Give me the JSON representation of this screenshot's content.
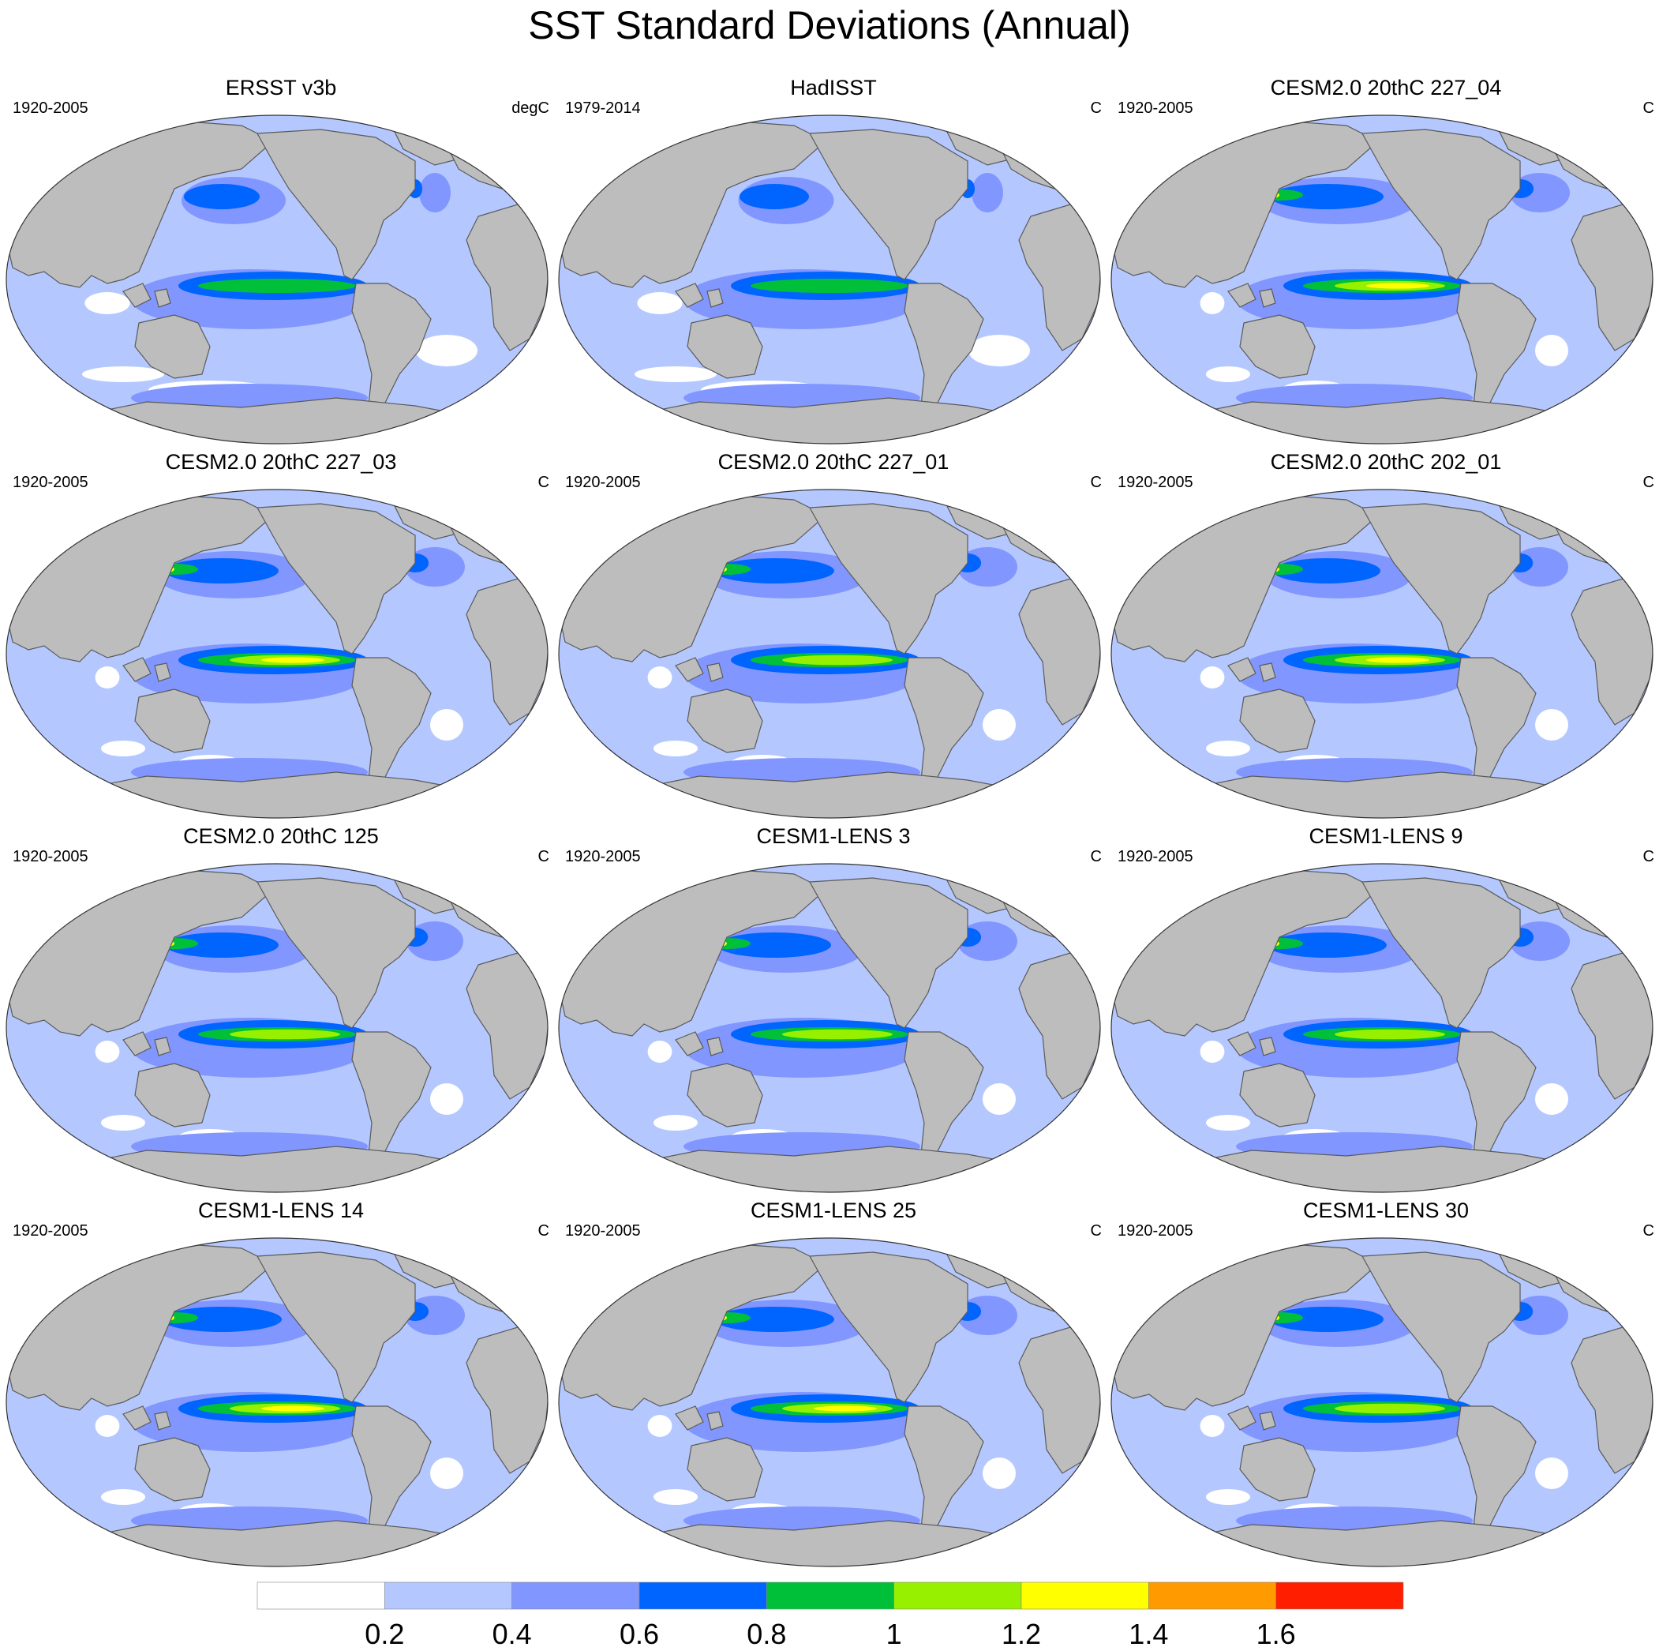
{
  "title": "SST Standard Deviations (Annual)",
  "colors": {
    "land": "#bdbdbd",
    "coast": "#5a5a5a",
    "levels": [
      "#ffffff",
      "#b4c8ff",
      "#8296ff",
      "#0064ff",
      "#00c03a",
      "#96f000",
      "#ffff00",
      "#ff9a00",
      "#ff1e00"
    ]
  },
  "panels": [
    {
      "title": "ERSST v3b",
      "period": "1920-2005",
      "units": "degC",
      "enso": 3,
      "npac": 0.6,
      "natl": 0.5
    },
    {
      "title": "HadISST",
      "period": "1979-2014",
      "units": "C",
      "enso": 3,
      "npac": 0.55,
      "natl": 0.5
    },
    {
      "title": "CESM2.0 20thC 227_04",
      "period": "1920-2005",
      "units": "C",
      "enso": 5,
      "npac": 0.9,
      "natl": 0.95
    },
    {
      "title": "CESM2.0 20thC 227_03",
      "period": "1920-2005",
      "units": "C",
      "enso": 5,
      "npac": 0.9,
      "natl": 0.95
    },
    {
      "title": "CESM2.0 20thC 227_01",
      "period": "1920-2005",
      "units": "C",
      "enso": 4.5,
      "npac": 0.95,
      "natl": 0.95
    },
    {
      "title": "CESM2.0 20thC 202_01",
      "period": "1920-2005",
      "units": "C",
      "enso": 5,
      "npac": 0.85,
      "natl": 0.9
    },
    {
      "title": "CESM2.0 20thC 125",
      "period": "1920-2005",
      "units": "C",
      "enso": 4,
      "npac": 0.9,
      "natl": 0.9
    },
    {
      "title": "CESM1-LENS 3",
      "period": "1920-2005",
      "units": "C",
      "enso": 4,
      "npac": 0.9,
      "natl": 0.95
    },
    {
      "title": "CESM1-LENS 9",
      "period": "1920-2005",
      "units": "C",
      "enso": 4,
      "npac": 0.95,
      "natl": 0.95
    },
    {
      "title": "CESM1-LENS 14",
      "period": "1920-2005",
      "units": "C",
      "enso": 5,
      "npac": 0.95,
      "natl": 0.95
    },
    {
      "title": "CESM1-LENS 25",
      "period": "1920-2005",
      "units": "C",
      "enso": 5,
      "npac": 0.95,
      "natl": 0.95
    },
    {
      "title": "CESM1-LENS 30",
      "period": "1920-2005",
      "units": "C",
      "enso": 4,
      "npac": 0.9,
      "natl": 0.9
    }
  ],
  "colorbar": {
    "labels": [
      "0.2",
      "0.4",
      "0.6",
      "0.8",
      "1",
      "1.2",
      "1.4",
      "1.6"
    ]
  }
}
